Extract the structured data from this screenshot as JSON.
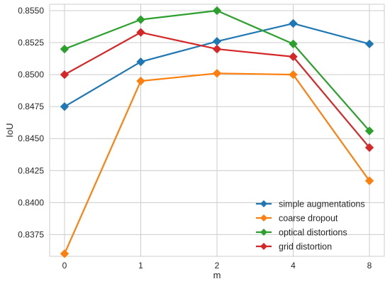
{
  "chart_data": {
    "type": "line",
    "categories": [
      "0",
      "1",
      "2",
      "4",
      "8"
    ],
    "xlabel": "m",
    "ylabel": "IoU",
    "ylim": [
      0.8358,
      0.8555
    ],
    "yticks": [
      "0.8375",
      "0.8400",
      "0.8425",
      "0.8450",
      "0.8475",
      "0.8500",
      "0.8525",
      "0.8550"
    ],
    "grid": true,
    "legend": "bottom-right",
    "series": [
      {
        "name": "simple augmentations",
        "color": "#1f77b4",
        "values": [
          0.8475,
          0.851,
          0.8526,
          0.854,
          0.8524
        ]
      },
      {
        "name": "coarse dropout",
        "color": "#ff7f0e",
        "values": [
          0.836,
          0.8495,
          0.8501,
          0.85,
          0.8417
        ]
      },
      {
        "name": "optical distortions",
        "color": "#2ca02c",
        "values": [
          0.852,
          0.8543,
          0.855,
          0.8524,
          0.8456
        ]
      },
      {
        "name": "grid distortion",
        "color": "#d62728",
        "values": [
          0.85,
          0.8533,
          0.852,
          0.8514,
          0.8443
        ]
      }
    ]
  }
}
